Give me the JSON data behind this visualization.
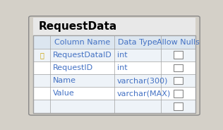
{
  "title": "RequestData",
  "headers": [
    "Column Name",
    "Data Type",
    "Allow Nulls"
  ],
  "rows": [
    {
      "name": "RequestDataID",
      "data_type": "int",
      "allow_nulls": false,
      "is_key": true
    },
    {
      "name": "RequestID",
      "data_type": "int",
      "allow_nulls": false,
      "is_key": false
    },
    {
      "name": "Name",
      "data_type": "varchar(300)",
      "allow_nulls": false,
      "is_key": false
    },
    {
      "name": "Value",
      "data_type": "varchar(MAX)",
      "allow_nulls": false,
      "is_key": false
    },
    {
      "name": "",
      "data_type": "",
      "allow_nulls": false,
      "is_key": false
    }
  ],
  "bg_outer": "#d4d0c8",
  "bg_header_title": "#e8e8e8",
  "bg_table_header": "#dce6f0",
  "bg_row_even": "#ffffff",
  "bg_row_odd": "#eef3f8",
  "text_color_title": "#000000",
  "text_color_header": "#4472c4",
  "text_color_row": "#4472c4",
  "border_color": "#a0a0a0",
  "title_fontsize": 11,
  "header_fontsize": 8,
  "row_fontsize": 8
}
